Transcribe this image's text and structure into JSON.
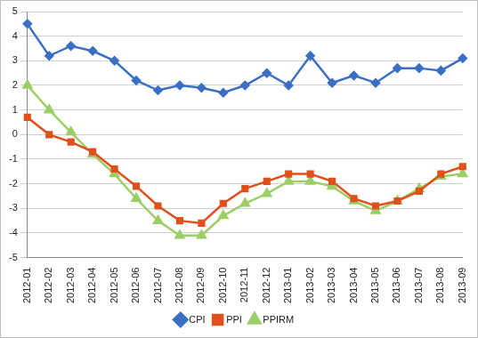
{
  "chart_data": {
    "type": "line",
    "categories": [
      "2012-01",
      "2012-02",
      "2012-03",
      "2012-04",
      "2012-05",
      "2012-06",
      "2012-07",
      "2012-08",
      "2012-09",
      "2012-10",
      "2012-11",
      "2012-12",
      "2013-01",
      "2013-02",
      "2013-03",
      "2013-04",
      "2013-05",
      "2013-06",
      "2013-07",
      "2013-08",
      "2013-09"
    ],
    "series": [
      {
        "name": "CPI",
        "color": "#3a6fc4",
        "marker": "diamond",
        "values": [
          4.5,
          3.2,
          3.6,
          3.4,
          3.0,
          2.2,
          1.8,
          2.0,
          1.9,
          1.7,
          2.0,
          2.5,
          2.0,
          3.2,
          2.1,
          2.4,
          2.1,
          2.7,
          2.7,
          2.6,
          3.1
        ]
      },
      {
        "name": "PPI",
        "color": "#e0501c",
        "marker": "square",
        "values": [
          0.7,
          0.0,
          -0.3,
          -0.7,
          -1.4,
          -2.1,
          -2.9,
          -3.5,
          -3.6,
          -2.8,
          -2.2,
          -1.9,
          -1.6,
          -1.6,
          -1.9,
          -2.6,
          -2.9,
          -2.7,
          -2.3,
          -1.6,
          -1.3
        ]
      },
      {
        "name": "PPIRM",
        "color": "#9bcf66",
        "marker": "triangle",
        "values": [
          2.0,
          1.0,
          0.1,
          -0.8,
          -1.6,
          -2.6,
          -3.5,
          -4.1,
          -4.1,
          -3.3,
          -2.8,
          -2.4,
          -1.9,
          -1.9,
          -2.1,
          -2.7,
          -3.1,
          -2.7,
          -2.2,
          -1.7,
          -1.6
        ]
      }
    ],
    "ylim": [
      -5,
      5
    ],
    "yticks": [
      -5,
      -4,
      -3,
      -2,
      -1,
      0,
      1,
      2,
      3,
      4,
      5
    ],
    "grid": true,
    "legend": "bottom"
  }
}
